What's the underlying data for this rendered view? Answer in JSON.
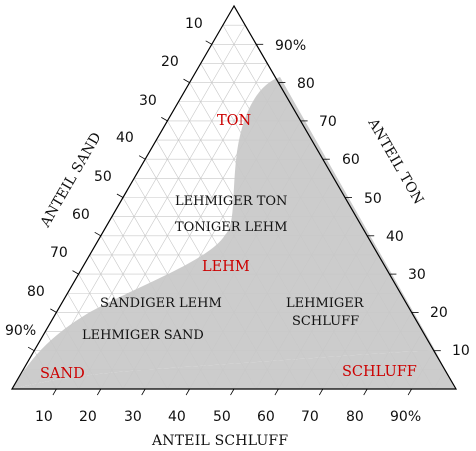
{
  "axes": {
    "sand": {
      "title": "ANTEIL SAND",
      "ticks": [
        "10",
        "20",
        "30",
        "40",
        "50",
        "60",
        "70",
        "80",
        "90%"
      ]
    },
    "ton": {
      "title": "ANTEIL TON",
      "ticks": [
        "10",
        "20",
        "30",
        "40",
        "50",
        "60",
        "70",
        "80",
        "90%"
      ]
    },
    "schluff": {
      "title": "ANTEIL SCHLUFF",
      "ticks": [
        "10",
        "20",
        "30",
        "40",
        "50",
        "60",
        "70",
        "80",
        "90%"
      ]
    }
  },
  "regions": {
    "ton": "TON",
    "lehmiger_ton": "LEHMIGER TON",
    "toniger_lehm": "TONIGER LEHM",
    "lehm": "LEHM",
    "sandiger_lehm": "SANDIGER LEHM",
    "lehmiger_schluff_1": "LEHMIGER",
    "lehmiger_schluff_2": "SCHLUFF",
    "lehmiger_sand": "LEHMIGER SAND",
    "sand": "SAND",
    "schluff": "SCHLUFF"
  },
  "colors": {
    "shaded_region": "#cccccc",
    "grid": "#c8c8c8",
    "outline": "#000000",
    "highlight_label": "#cc0000"
  }
}
